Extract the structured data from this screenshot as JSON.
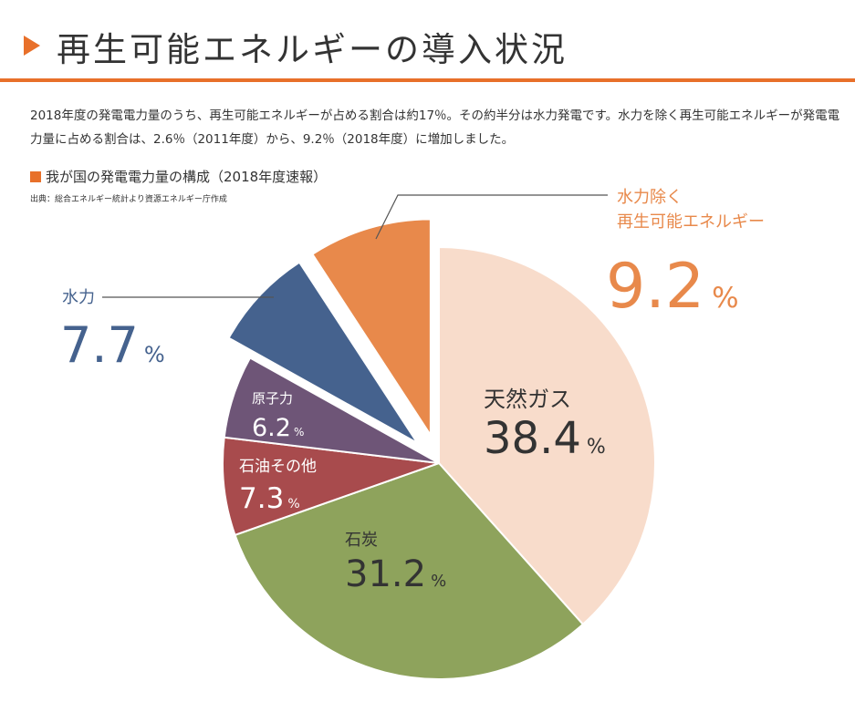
{
  "header": {
    "title": "再生可能エネルギーの導入状況"
  },
  "intro": {
    "text": "2018年度の発電電力量のうち、再生可能エネルギーが占める割合は約17％。その約半分は水力発電です。水力を除く再生可能エネルギーが発電電力量に占める割合は、2.6％（2011年度）から、9.2％（2018年度）に増加しました。"
  },
  "chart_title": "我が国の発電電力量の構成（2018年度速報）",
  "source": "出典：総合エネルギー統計より資源エネルギー庁作成",
  "colors": {
    "accent": "#e8702a"
  },
  "chart_data": {
    "type": "pie",
    "start_angle_deg": 0,
    "direction": "clockwise",
    "unit": "%",
    "slices": [
      {
        "label": "天然ガス",
        "value": 38.4,
        "display": "38.4",
        "color": "#f8dccb",
        "text_color": "#333333",
        "exploded": false
      },
      {
        "label": "石炭",
        "value": 31.2,
        "display": "31.2",
        "color": "#8ea35c",
        "text_color": "#333333",
        "exploded": false
      },
      {
        "label": "石油その他",
        "value": 7.3,
        "display": "7.3",
        "color": "#a84b4d",
        "text_color": "#ffffff",
        "exploded": false
      },
      {
        "label": "原子力",
        "value": 6.2,
        "display": "6.2",
        "color": "#6e5577",
        "text_color": "#ffffff",
        "exploded": false
      },
      {
        "label": "水力",
        "value": 7.7,
        "display": "7.7",
        "color": "#45628e",
        "text_color": "#45628e",
        "exploded": true
      },
      {
        "label": "水力除く\n再生可能エネルギー",
        "value": 9.2,
        "display": "9.2",
        "color": "#e8894b",
        "text_color": "#e8894b",
        "exploded": true
      }
    ]
  }
}
